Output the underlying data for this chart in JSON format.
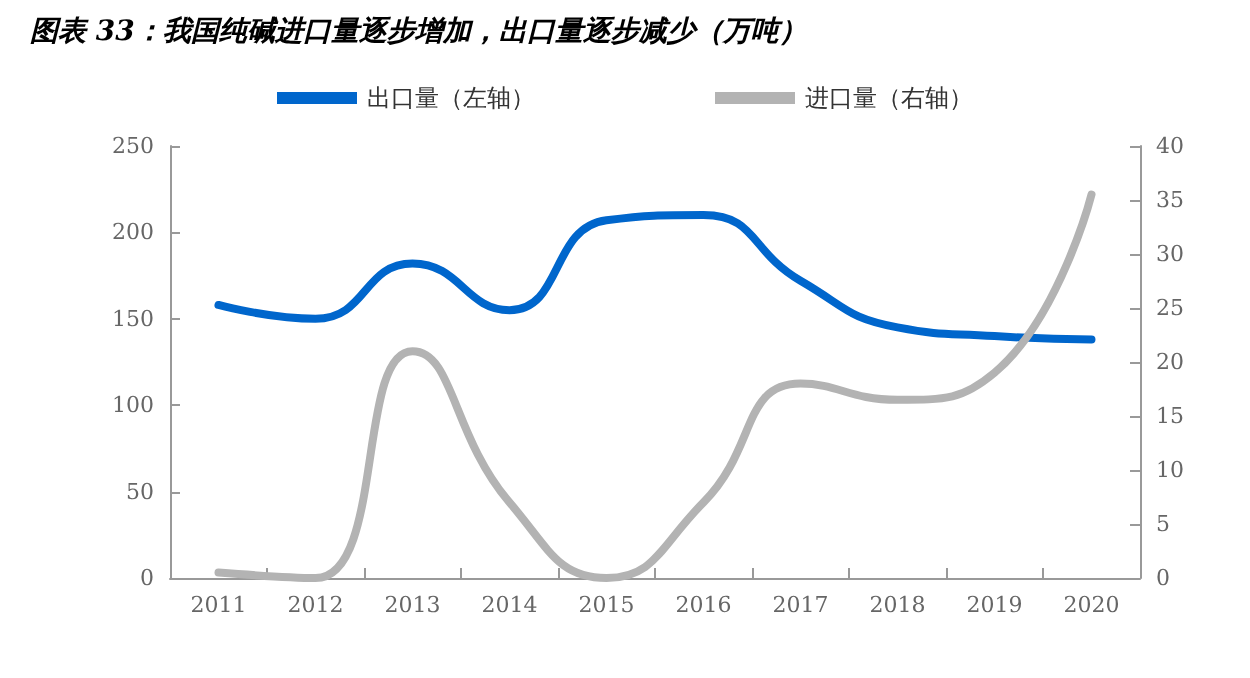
{
  "chart_data": {
    "type": "line",
    "title": "图表 33：我国纯碱进口量逐步增加，出口量逐步减少（万吨）",
    "categories": [
      "2011",
      "2012",
      "2013",
      "2014",
      "2015",
      "2016",
      "2017",
      "2018",
      "2019",
      "2020"
    ],
    "series": [
      {
        "name": "出口量（左轴）",
        "color": "#0066cc",
        "values": [
          158,
          150,
          182,
          155,
          207,
          210,
          172,
          145,
          140,
          138
        ]
      },
      {
        "name": "进口量（右轴）",
        "color": "#b3b3b3",
        "axis": "y2",
        "values": [
          0.5,
          0,
          21,
          7,
          0,
          7,
          18,
          16.5,
          19,
          35.5
        ]
      }
    ],
    "ylim": [
      0,
      250
    ],
    "yticks": [
      0,
      50,
      100,
      150,
      200,
      250
    ],
    "y2lim": [
      0,
      40
    ],
    "y2ticks": [
      0,
      5,
      10,
      15,
      20,
      25,
      30,
      35,
      40
    ],
    "grid": false,
    "legend": "top",
    "marker": "none",
    "line_style": "solid"
  }
}
